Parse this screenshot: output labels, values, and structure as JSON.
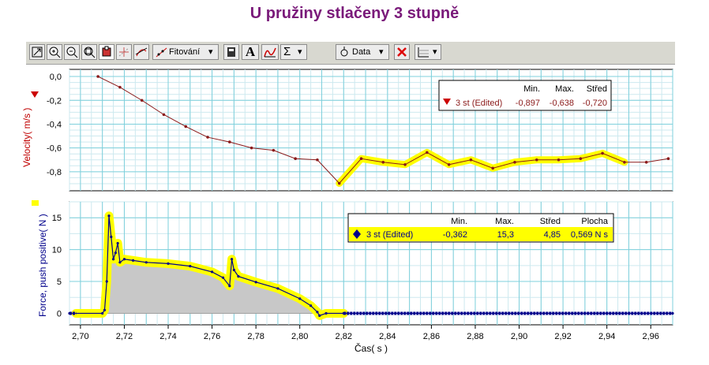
{
  "title": "U pružiny stlačeny 3 stupně",
  "toolbar": {
    "fit_label": "Fitování",
    "text_tool_label": "A",
    "sigma_label": "Σ",
    "data_label": "Data",
    "icons": [
      "autoscale-icon",
      "zoom-in-icon",
      "zoom-out-icon",
      "zoom-box-icon",
      "examine-icon",
      "interpolate-icon",
      "tangent-icon",
      "curve-fit-icon",
      "stats-calculator-icon",
      "annotation-icon",
      "integral-icon",
      "statistics-icon",
      "data-set-icon",
      "remove-icon",
      "graph-options-icon"
    ]
  },
  "top_legend": {
    "headers": [
      "Min.",
      "Max.",
      "Střed"
    ],
    "series_label": "3 st (Edited)",
    "values": [
      "-0,897",
      "-0,638",
      "-0,720"
    ]
  },
  "bottom_legend": {
    "headers": [
      "Min.",
      "Max.",
      "Střed",
      "Plocha"
    ],
    "series_label": "3 st (Edited)",
    "values": [
      "-0,362",
      "15,3",
      "4,85",
      "0,569 N s"
    ]
  },
  "chart_data": [
    {
      "type": "line",
      "ylabel": "Velocity( m/s )",
      "xlim": [
        2.695,
        2.97
      ],
      "ylim": [
        -0.96,
        0.06
      ],
      "yticks": [
        "0,0",
        "-0,2",
        "-0,4",
        "-0,6",
        "-0,8"
      ],
      "colors": {
        "line": "#8b1a1a",
        "selection": "#ffff00"
      },
      "selection_range": [
        2.817,
        2.948
      ],
      "series": [
        {
          "name": "3 st (Edited)",
          "x": [
            2.708,
            2.718,
            2.728,
            2.738,
            2.748,
            2.758,
            2.768,
            2.778,
            2.788,
            2.798,
            2.808,
            2.818,
            2.828,
            2.838,
            2.848,
            2.858,
            2.868,
            2.878,
            2.888,
            2.898,
            2.908,
            2.918,
            2.928,
            2.938,
            2.948,
            2.958,
            2.968
          ],
          "y": [
            0.0,
            -0.09,
            -0.2,
            -0.32,
            -0.42,
            -0.51,
            -0.55,
            -0.6,
            -0.62,
            -0.69,
            -0.7,
            -0.897,
            -0.69,
            -0.72,
            -0.74,
            -0.638,
            -0.74,
            -0.7,
            -0.77,
            -0.72,
            -0.7,
            -0.7,
            -0.69,
            -0.645,
            -0.72,
            -0.72,
            -0.69
          ]
        }
      ]
    },
    {
      "type": "area",
      "ylabel": "Force, push positive( N )",
      "xlabel": "Čas( s )",
      "xlim": [
        2.695,
        2.97
      ],
      "ylim": [
        -1.8,
        17.5
      ],
      "yticks": [
        "15",
        "10",
        "5",
        "0"
      ],
      "xticks": [
        "2,70",
        "2,72",
        "2,74",
        "2,76",
        "2,78",
        "2,80",
        "2,82",
        "2,84",
        "2,86",
        "2,88",
        "2,90",
        "2,92",
        "2,94",
        "2,96"
      ],
      "colors": {
        "line": "#00008b",
        "selection": "#ffff00",
        "fill": "#c8c8c8"
      },
      "selection_range": [
        2.698,
        2.82
      ],
      "series": [
        {
          "name": "3 st (Edited)",
          "x": [
            2.695,
            2.71,
            2.711,
            2.712,
            2.713,
            2.714,
            2.715,
            2.716,
            2.717,
            2.718,
            2.72,
            2.724,
            2.73,
            2.74,
            2.75,
            2.76,
            2.765,
            2.768,
            2.769,
            2.77,
            2.772,
            2.78,
            2.79,
            2.8,
            2.805,
            2.808,
            2.809,
            2.812,
            2.82,
            2.97
          ],
          "y": [
            0.0,
            0.0,
            0.5,
            5.0,
            15.3,
            12.0,
            8.5,
            9.5,
            11.0,
            8.0,
            8.5,
            8.3,
            8.0,
            7.8,
            7.4,
            6.5,
            5.6,
            4.3,
            8.5,
            6.8,
            5.8,
            4.9,
            3.9,
            2.3,
            1.2,
            0.2,
            -0.362,
            0.0,
            0.0,
            0.0
          ]
        }
      ]
    }
  ]
}
